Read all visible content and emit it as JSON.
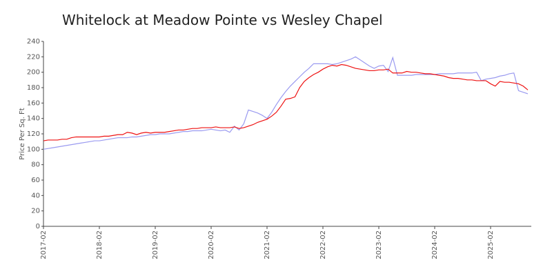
{
  "chart_data": {
    "type": "line",
    "title": "Whitelock at Meadow Pointe vs Wesley Chapel",
    "y_label": "Price Per Sq. Ft",
    "x": [
      "2017-02",
      "2017-03",
      "2017-04",
      "2017-05",
      "2017-06",
      "2017-07",
      "2017-08",
      "2017-09",
      "2017-10",
      "2017-11",
      "2017-12",
      "2018-01",
      "2018-02",
      "2018-03",
      "2018-04",
      "2018-05",
      "2018-06",
      "2018-07",
      "2018-08",
      "2018-09",
      "2018-10",
      "2018-11",
      "2018-12",
      "2019-01",
      "2019-02",
      "2019-03",
      "2019-04",
      "2019-05",
      "2019-06",
      "2019-07",
      "2019-08",
      "2019-09",
      "2019-10",
      "2019-11",
      "2019-12",
      "2020-01",
      "2020-02",
      "2020-03",
      "2020-04",
      "2020-05",
      "2020-06",
      "2020-07",
      "2020-08",
      "2020-09",
      "2020-10",
      "2020-11",
      "2020-12",
      "2021-01",
      "2021-02",
      "2021-03",
      "2021-04",
      "2021-05",
      "2021-06",
      "2021-07",
      "2021-08",
      "2021-09",
      "2021-10",
      "2021-11",
      "2021-12",
      "2022-01",
      "2022-02",
      "2022-03",
      "2022-04",
      "2022-05",
      "2022-06",
      "2022-07",
      "2022-08",
      "2022-09",
      "2022-10",
      "2022-11",
      "2022-12",
      "2023-01",
      "2023-02",
      "2023-03",
      "2023-04",
      "2023-05",
      "2023-06",
      "2023-07",
      "2023-08",
      "2023-09",
      "2023-10",
      "2023-11",
      "2023-12",
      "2024-01",
      "2024-02",
      "2024-03",
      "2024-04",
      "2024-05",
      "2024-06",
      "2024-07",
      "2024-08",
      "2024-09",
      "2024-10",
      "2024-11",
      "2024-12",
      "2025-01",
      "2025-02",
      "2025-03",
      "2025-04",
      "2025-05",
      "2025-06",
      "2025-07",
      "2025-08",
      "2025-09",
      "2025-10"
    ],
    "series": [
      {
        "color": "#9a9af0",
        "values": [
          100,
          101,
          102,
          103,
          104,
          105,
          106,
          107,
          108,
          109,
          110,
          111,
          111,
          112,
          113,
          114,
          115,
          115,
          115,
          116,
          116,
          117,
          118,
          119,
          119,
          120,
          120,
          120,
          121,
          122,
          123,
          123,
          124,
          124,
          124,
          125,
          126,
          125,
          124,
          125,
          122,
          130,
          125,
          133,
          151,
          149,
          147,
          144,
          140,
          148,
          158,
          167,
          175,
          182,
          188,
          194,
          200,
          205,
          211,
          211,
          211,
          211,
          210,
          211,
          213,
          215,
          217,
          220,
          216,
          212,
          208,
          205,
          208,
          209,
          201,
          219,
          196,
          196,
          196,
          196,
          197,
          197,
          197,
          197,
          197,
          198,
          198,
          198,
          198,
          199,
          199,
          199,
          199,
          200,
          189,
          191,
          192,
          193,
          195,
          196,
          198,
          199,
          176,
          174,
          172
        ]
      },
      {
        "color": "#ee1111",
        "values": [
          111,
          112,
          112,
          112,
          113,
          113,
          115,
          116,
          116,
          116,
          116,
          116,
          116,
          117,
          117,
          118,
          119,
          119,
          122,
          121,
          119,
          121,
          122,
          121,
          122,
          122,
          122,
          123,
          124,
          125,
          125,
          126,
          127,
          127,
          128,
          128,
          128,
          129,
          128,
          128,
          128,
          129,
          127,
          128,
          130,
          132,
          135,
          137,
          139,
          143,
          148,
          156,
          165,
          166,
          168,
          180,
          188,
          193,
          197,
          200,
          204,
          207,
          209,
          208,
          210,
          209,
          207,
          205,
          204,
          203,
          202,
          202,
          203,
          203,
          204,
          199,
          199,
          199,
          201,
          200,
          200,
          199,
          198,
          198,
          197,
          196,
          195,
          193,
          192,
          192,
          191,
          190,
          190,
          189,
          189,
          189,
          185,
          182,
          188,
          187,
          187,
          186,
          185,
          182,
          177
        ]
      }
    ],
    "xticks": [
      "2017-02",
      "2018-02",
      "2019-02",
      "2020-02",
      "2021-02",
      "2022-02",
      "2023-02",
      "2024-02",
      "2025-02"
    ],
    "ylim": [
      0,
      240
    ],
    "yticks": [
      0,
      20,
      40,
      60,
      80,
      100,
      120,
      140,
      160,
      180,
      200,
      220,
      240
    ],
    "grid": false
  }
}
